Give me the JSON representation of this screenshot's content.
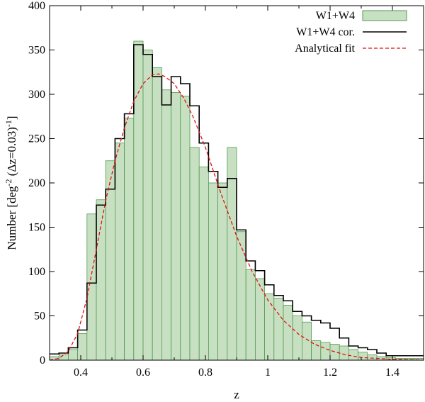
{
  "chart_data": {
    "type": "bar",
    "xlabel": "z",
    "ylabel": "Number [deg",
    "ylabel_sup1": "-2",
    "ylabel_mid": " (Δz=0.03)",
    "ylabel_sup2": "-1",
    "ylabel_end": "]",
    "xlim": [
      0.3,
      1.5
    ],
    "ylim": [
      0,
      400
    ],
    "x_ticks": [
      0.4,
      0.6,
      0.8,
      1.0,
      1.2,
      1.4
    ],
    "x_tick_labels": [
      "0.4",
      "0.6",
      "0.8",
      "1",
      "1.2",
      "1.4"
    ],
    "y_ticks": [
      0,
      50,
      100,
      150,
      200,
      250,
      300,
      350,
      400
    ],
    "y_tick_labels": [
      "0",
      "50",
      "100",
      "150",
      "200",
      "250",
      "300",
      "350",
      "400"
    ],
    "bin_width": 0.03,
    "bin_starts": [
      0.3,
      0.33,
      0.36,
      0.39,
      0.42,
      0.45,
      0.48,
      0.51,
      0.54,
      0.57,
      0.6,
      0.63,
      0.66,
      0.69,
      0.72,
      0.75,
      0.78,
      0.81,
      0.84,
      0.87,
      0.9,
      0.93,
      0.96,
      0.99,
      1.02,
      1.05,
      1.08,
      1.11,
      1.14,
      1.17,
      1.2,
      1.23,
      1.26,
      1.29,
      1.32,
      1.35,
      1.38,
      1.41,
      1.44,
      1.47
    ],
    "legend_position": "top-right",
    "grid": false,
    "series": [
      {
        "name": "W1+W4",
        "style": "filled-bars",
        "values": [
          4,
          6,
          12,
          30,
          165,
          181,
          225,
          245,
          273,
          360,
          350,
          330,
          305,
          302,
          298,
          240,
          218,
          200,
          200,
          240,
          145,
          102,
          92,
          75,
          70,
          62,
          50,
          43,
          22,
          20,
          18,
          16,
          12,
          9,
          6,
          4,
          3,
          2,
          2,
          2
        ]
      },
      {
        "name": "W1+W4 cor.",
        "style": "step",
        "values": [
          7,
          8,
          14,
          34,
          87,
          175,
          193,
          250,
          278,
          356,
          345,
          320,
          288,
          320,
          312,
          287,
          245,
          213,
          195,
          205,
          147,
          112,
          101,
          85,
          73,
          67,
          55,
          50,
          45,
          42,
          36,
          25,
          16,
          14,
          12,
          8,
          5,
          5,
          5,
          5
        ]
      },
      {
        "name": "Analytical fit",
        "style": "dashed-line",
        "x": [
          0.3,
          0.33,
          0.36,
          0.39,
          0.42,
          0.45,
          0.48,
          0.51,
          0.54,
          0.57,
          0.6,
          0.63,
          0.65,
          0.67,
          0.7,
          0.73,
          0.76,
          0.8,
          0.85,
          0.9,
          0.95,
          1.0,
          1.05,
          1.1,
          1.15,
          1.2,
          1.25,
          1.3,
          1.35,
          1.4,
          1.45,
          1.5
        ],
        "values": [
          0,
          2,
          10,
          30,
          70,
          125,
          180,
          225,
          262,
          292,
          312,
          322,
          323,
          320,
          312,
          296,
          275,
          240,
          188,
          140,
          100,
          68,
          45,
          29,
          18,
          11,
          6,
          3,
          2,
          1,
          0.5,
          0
        ]
      }
    ],
    "colors": {
      "fill": "#c8e0c2",
      "fill_stroke": "#4e9a4e",
      "step": "#000000",
      "fit": "#e01010"
    }
  }
}
